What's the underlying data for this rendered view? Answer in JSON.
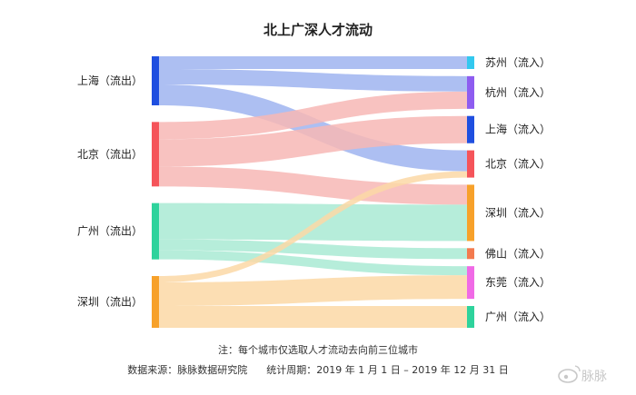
{
  "chart_data": {
    "type": "sankey",
    "title": "北上广深人才流动",
    "sources": [
      {
        "name": "上海（流出）",
        "color": "#1f4fe0",
        "flow_color": "#9fb4f0"
      },
      {
        "name": "北京（流出）",
        "color": "#f5545a",
        "flow_color": "#f7b7b5"
      },
      {
        "name": "广州（流出）",
        "color": "#2ed39c",
        "flow_color": "#a9ead3"
      },
      {
        "name": "深圳（流出）",
        "color": "#f7a12a",
        "flow_color": "#fbd8a6"
      }
    ],
    "targets": [
      {
        "name": "苏州（流入）",
        "color": "#33c8ef"
      },
      {
        "name": "杭州（流入）",
        "color": "#8e5cf0"
      },
      {
        "name": "上海（流入）",
        "color": "#1f4fe0"
      },
      {
        "name": "北京（流入）",
        "color": "#f5545a"
      },
      {
        "name": "深圳（流入）",
        "color": "#f7a12a"
      },
      {
        "name": "佛山（流入）",
        "color": "#f37a4e"
      },
      {
        "name": "东莞（流入）",
        "color": "#f06ae6"
      },
      {
        "name": "广州（流入）",
        "color": "#2ed39c"
      }
    ],
    "links": [
      {
        "source": "上海（流出）",
        "target": "苏州（流入）",
        "value": 14
      },
      {
        "source": "上海（流出）",
        "target": "杭州（流入）",
        "value": 17
      },
      {
        "source": "上海（流出）",
        "target": "北京（流入）",
        "value": 23
      },
      {
        "source": "北京（流出）",
        "target": "杭州（流入）",
        "value": 19
      },
      {
        "source": "北京（流出）",
        "target": "上海（流入）",
        "value": 30
      },
      {
        "source": "北京（流出）",
        "target": "深圳（流入）",
        "value": 22
      },
      {
        "source": "广州（流出）",
        "target": "深圳（流入）",
        "value": 40
      },
      {
        "source": "广州（流出）",
        "target": "佛山（流入）",
        "value": 12
      },
      {
        "source": "广州（流出）",
        "target": "东莞（流入）",
        "value": 10
      },
      {
        "source": "深圳（流出）",
        "target": "北京（流入）",
        "value": 7
      },
      {
        "source": "深圳（流出）",
        "target": "东莞（流入）",
        "value": 26
      },
      {
        "source": "深圳（流出）",
        "target": "广州（流入）",
        "value": 24
      }
    ]
  },
  "notes": {
    "line1": "注：每个城市仅选取人才流动去向前三位城市",
    "line2": "数据来源：脉脉数据研究院      统计周期：2019 年 1 月 1 日 – 2019 年 12 月 31 日"
  },
  "watermark": {
    "text": "脉脉",
    "icon": "weibo-icon"
  }
}
